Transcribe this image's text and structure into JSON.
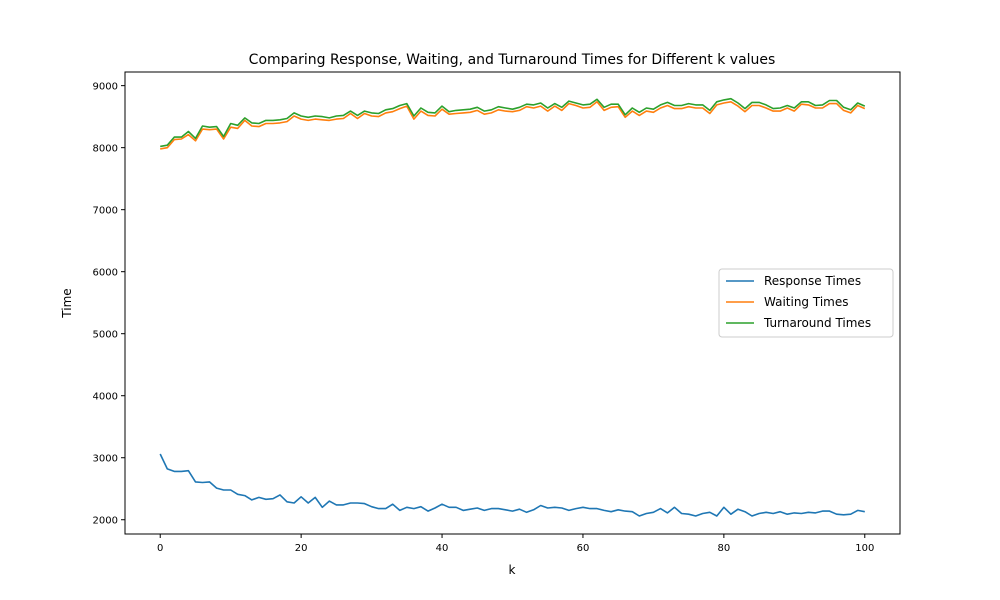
{
  "chart_data": {
    "type": "line",
    "title": "Comparing Response, Waiting, and Turnaround Times for Different k values",
    "xlabel": "k",
    "ylabel": "Time",
    "xlim": [
      -5,
      105
    ],
    "ylim": [
      1770,
      9220
    ],
    "x_ticks": [
      0,
      20,
      40,
      60,
      80,
      100
    ],
    "y_ticks": [
      2000,
      3000,
      4000,
      5000,
      6000,
      7000,
      8000,
      9000
    ],
    "grid": false,
    "legend_position": "center-right",
    "x": [
      0,
      1,
      2,
      3,
      4,
      5,
      6,
      7,
      8,
      9,
      10,
      11,
      12,
      13,
      14,
      15,
      16,
      17,
      18,
      19,
      20,
      21,
      22,
      23,
      24,
      25,
      26,
      27,
      28,
      29,
      30,
      31,
      32,
      33,
      34,
      35,
      36,
      37,
      38,
      39,
      40,
      41,
      42,
      43,
      44,
      45,
      46,
      47,
      48,
      49,
      50,
      51,
      52,
      53,
      54,
      55,
      56,
      57,
      58,
      59,
      60,
      61,
      62,
      63,
      64,
      65,
      66,
      67,
      68,
      69,
      70,
      71,
      72,
      73,
      74,
      75,
      76,
      77,
      78,
      79,
      80,
      81,
      82,
      83,
      84,
      85,
      86,
      87,
      88,
      89,
      90,
      91,
      92,
      93,
      94,
      95,
      96,
      97,
      98,
      99,
      100
    ],
    "series": [
      {
        "name": "Response Times",
        "color": "#1f77b4",
        "values": [
          3060,
          2820,
          2780,
          2780,
          2790,
          2610,
          2600,
          2610,
          2510,
          2480,
          2480,
          2410,
          2390,
          2320,
          2360,
          2330,
          2340,
          2400,
          2290,
          2270,
          2370,
          2270,
          2360,
          2200,
          2300,
          2240,
          2240,
          2270,
          2270,
          2260,
          2210,
          2180,
          2180,
          2250,
          2150,
          2200,
          2180,
          2210,
          2140,
          2190,
          2250,
          2200,
          2200,
          2150,
          2170,
          2190,
          2150,
          2180,
          2180,
          2160,
          2140,
          2170,
          2120,
          2160,
          2230,
          2190,
          2200,
          2190,
          2150,
          2180,
          2200,
          2180,
          2180,
          2150,
          2130,
          2160,
          2140,
          2130,
          2060,
          2100,
          2120,
          2180,
          2110,
          2200,
          2100,
          2090,
          2060,
          2100,
          2120,
          2060,
          2200,
          2090,
          2170,
          2130,
          2060,
          2100,
          2120,
          2100,
          2130,
          2090,
          2110,
          2100,
          2120,
          2110,
          2140,
          2140,
          2090,
          2080,
          2090,
          2150,
          2130
        ]
      },
      {
        "name": "Waiting Times",
        "color": "#ff7f0e",
        "values": [
          7980,
          8000,
          8130,
          8140,
          8210,
          8110,
          8300,
          8290,
          8300,
          8140,
          8330,
          8310,
          8440,
          8350,
          8340,
          8390,
          8390,
          8400,
          8420,
          8510,
          8460,
          8440,
          8460,
          8450,
          8440,
          8460,
          8470,
          8550,
          8470,
          8550,
          8510,
          8500,
          8560,
          8580,
          8630,
          8670,
          8460,
          8590,
          8520,
          8510,
          8620,
          8540,
          8550,
          8560,
          8570,
          8600,
          8540,
          8560,
          8610,
          8590,
          8580,
          8600,
          8660,
          8640,
          8670,
          8590,
          8670,
          8600,
          8710,
          8680,
          8640,
          8650,
          8740,
          8600,
          8650,
          8660,
          8490,
          8590,
          8520,
          8590,
          8570,
          8640,
          8680,
          8630,
          8630,
          8660,
          8640,
          8640,
          8550,
          8690,
          8720,
          8740,
          8670,
          8580,
          8680,
          8680,
          8640,
          8590,
          8590,
          8640,
          8590,
          8700,
          8690,
          8640,
          8640,
          8710,
          8710,
          8600,
          8560,
          8680,
          8630
        ]
      },
      {
        "name": "Turnaround Times",
        "color": "#2ca02c",
        "values": [
          8020,
          8040,
          8170,
          8170,
          8260,
          8150,
          8350,
          8330,
          8340,
          8180,
          8390,
          8360,
          8480,
          8400,
          8390,
          8440,
          8440,
          8450,
          8470,
          8560,
          8510,
          8490,
          8510,
          8500,
          8480,
          8510,
          8520,
          8590,
          8520,
          8590,
          8560,
          8550,
          8610,
          8630,
          8680,
          8710,
          8510,
          8640,
          8570,
          8560,
          8670,
          8580,
          8600,
          8610,
          8620,
          8650,
          8590,
          8610,
          8660,
          8640,
          8620,
          8650,
          8700,
          8690,
          8720,
          8640,
          8710,
          8650,
          8750,
          8720,
          8690,
          8700,
          8780,
          8650,
          8700,
          8700,
          8530,
          8640,
          8570,
          8640,
          8620,
          8690,
          8730,
          8680,
          8680,
          8710,
          8690,
          8690,
          8600,
          8740,
          8770,
          8790,
          8720,
          8630,
          8730,
          8730,
          8690,
          8630,
          8640,
          8680,
          8640,
          8740,
          8740,
          8680,
          8690,
          8760,
          8760,
          8650,
          8610,
          8720,
          8670
        ]
      }
    ]
  }
}
